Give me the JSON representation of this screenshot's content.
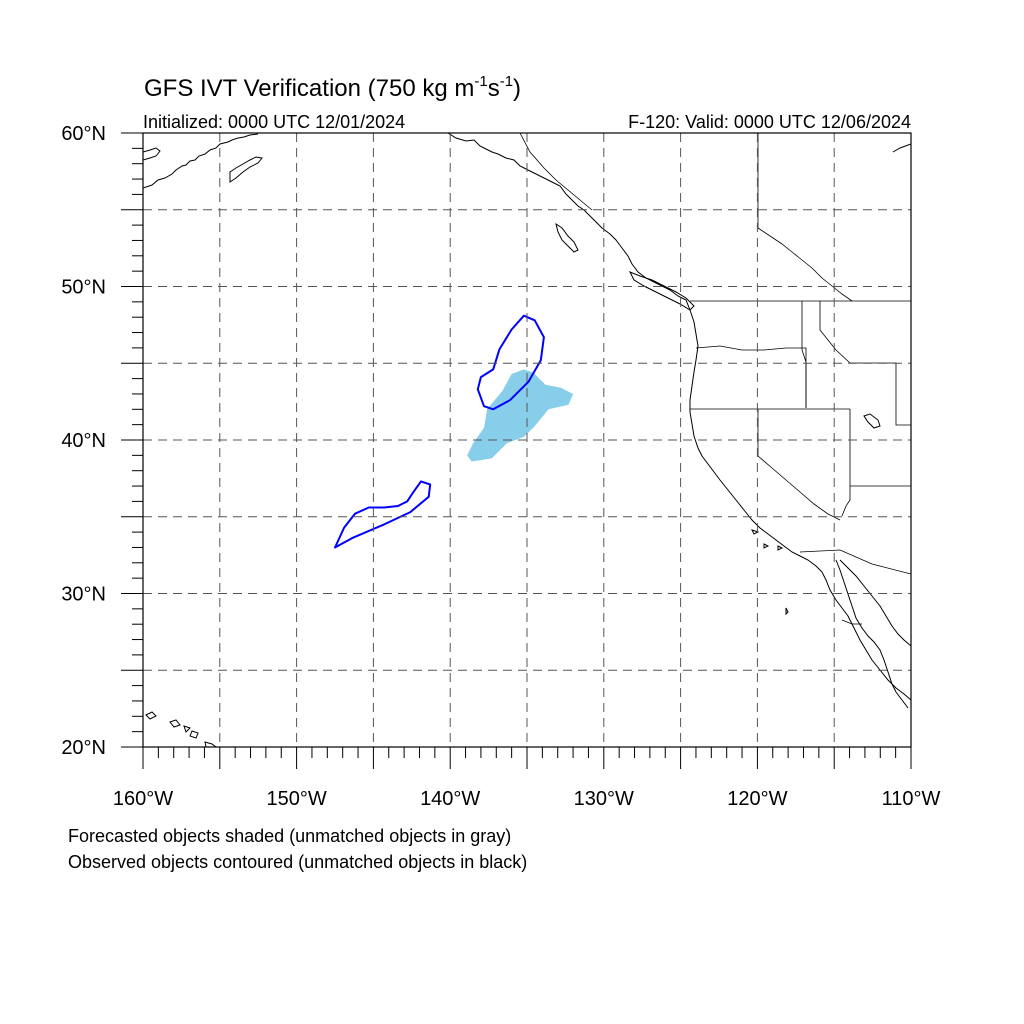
{
  "title": {
    "main": "GFS IVT Verification (750 kg m",
    "sup1": "-1",
    "mid": "s",
    "sup2": "-1",
    "end": ")"
  },
  "subtitle_left": "Initialized: 0000 UTC 12/01/2024",
  "subtitle_right": "F-120: Valid: 0000 UTC 12/06/2024",
  "footnotes": [
    "Forecasted objects shaded (unmatched objects in gray)",
    "Observed objects contoured (unmatched objects in black)"
  ],
  "map": {
    "lon_range": [
      -160,
      -110
    ],
    "lat_range": [
      20,
      60
    ],
    "lon_ticks": [
      {
        "lon": -160,
        "label": "160°W"
      },
      {
        "lon": -150,
        "label": "150°W"
      },
      {
        "lon": -140,
        "label": "140°W"
      },
      {
        "lon": -130,
        "label": "130°W"
      },
      {
        "lon": -120,
        "label": "120°W"
      },
      {
        "lon": -110,
        "label": "110°W"
      }
    ],
    "lat_ticks": [
      {
        "lat": 20,
        "label": "20°N"
      },
      {
        "lat": 30,
        "label": "30°N"
      },
      {
        "lat": 40,
        "label": "40°N"
      },
      {
        "lat": 50,
        "label": "50°N"
      },
      {
        "lat": 60,
        "label": "60°N"
      }
    ],
    "grid_lons": [
      -155,
      -150,
      -145,
      -140,
      -135,
      -130,
      -125,
      -120,
      -115
    ],
    "grid_lats": [
      25,
      30,
      35,
      40,
      45,
      50,
      55
    ],
    "colors": {
      "forecast_matched": "#87ceeb",
      "observed_matched": "#0000ff",
      "coast": "#000000",
      "grid": "#555555"
    },
    "forecast_objects": [
      {
        "name": "forecast-object-1",
        "polygon": [
          [
            -135.2,
            44.6
          ],
          [
            -134.6,
            44.4
          ],
          [
            -133.8,
            43.6
          ],
          [
            -132.8,
            43.4
          ],
          [
            -132.0,
            43.0
          ],
          [
            -132.3,
            42.3
          ],
          [
            -133.6,
            42.0
          ],
          [
            -134.5,
            40.9
          ],
          [
            -135.2,
            40.2
          ],
          [
            -136.3,
            39.8
          ],
          [
            -137.3,
            38.8
          ],
          [
            -138.6,
            38.6
          ],
          [
            -138.9,
            39.0
          ],
          [
            -138.5,
            39.8
          ],
          [
            -137.8,
            40.8
          ],
          [
            -137.6,
            42.0
          ],
          [
            -136.6,
            43.2
          ],
          [
            -136.0,
            44.3
          ]
        ]
      }
    ],
    "observed_objects": [
      {
        "name": "observed-object-1",
        "polygon": [
          [
            -135.2,
            48.1
          ],
          [
            -134.5,
            47.8
          ],
          [
            -133.9,
            46.7
          ],
          [
            -134.1,
            45.2
          ],
          [
            -134.9,
            43.8
          ],
          [
            -136.1,
            42.6
          ],
          [
            -137.2,
            42.0
          ],
          [
            -137.8,
            42.2
          ],
          [
            -138.2,
            43.3
          ],
          [
            -138.0,
            44.1
          ],
          [
            -137.2,
            44.6
          ],
          [
            -136.8,
            45.9
          ],
          [
            -136.0,
            47.2
          ]
        ]
      },
      {
        "name": "observed-object-2",
        "polygon": [
          [
            -147.5,
            33.0
          ],
          [
            -146.9,
            34.3
          ],
          [
            -146.2,
            35.2
          ],
          [
            -145.3,
            35.6
          ],
          [
            -144.3,
            35.6
          ],
          [
            -143.4,
            35.7
          ],
          [
            -142.8,
            36.0
          ],
          [
            -142.4,
            36.6
          ],
          [
            -141.9,
            37.3
          ],
          [
            -141.3,
            37.1
          ],
          [
            -141.4,
            36.3
          ],
          [
            -142.6,
            35.3
          ],
          [
            -144.3,
            34.5
          ],
          [
            -146.4,
            33.6
          ]
        ]
      }
    ]
  }
}
